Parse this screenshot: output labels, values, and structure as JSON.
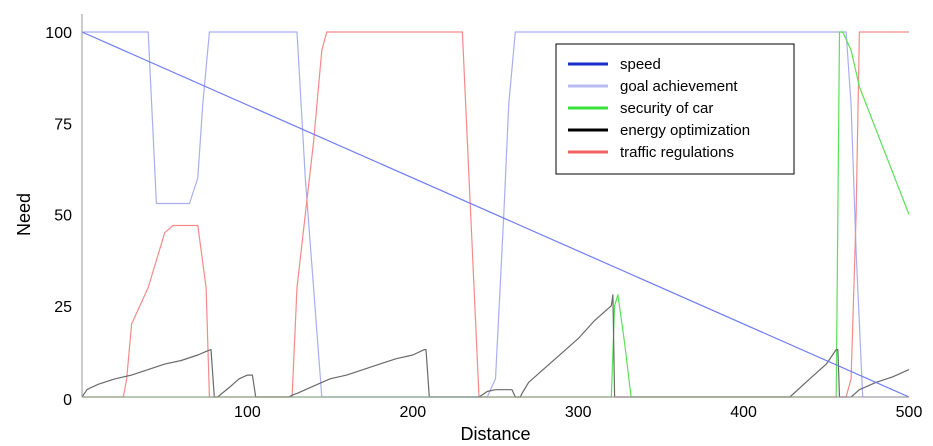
{
  "chart_data": {
    "type": "line",
    "xlabel": "Distance",
    "ylabel": "Need",
    "xlim": [
      0,
      500
    ],
    "ylim": [
      0,
      100
    ],
    "xticks": [
      100,
      200,
      300,
      400,
      500
    ],
    "yticks": [
      25,
      50,
      75,
      100
    ],
    "origin_label": "0",
    "grid": false,
    "legend_position": "top-right",
    "series": [
      {
        "name": "speed",
        "color": "#1a2ecc",
        "line_color": "#6f7df0",
        "x": [
          0,
          500
        ],
        "y": [
          100,
          0
        ]
      },
      {
        "name": "goal achievement",
        "color": "#b8bcf2",
        "line_color": "#a9aeee",
        "x": [
          0,
          22,
          40,
          45,
          60,
          65,
          70,
          73,
          77,
          80,
          85,
          130,
          135,
          145,
          150,
          220,
          236,
          240,
          245,
          250,
          255,
          258,
          262,
          265,
          462,
          465,
          468,
          472,
          500
        ],
        "y": [
          100,
          100,
          100,
          53,
          53,
          53,
          60,
          80,
          100,
          100,
          100,
          100,
          60,
          0,
          0,
          0,
          0,
          0,
          0,
          5,
          50,
          80,
          100,
          100,
          100,
          80,
          40,
          0,
          0
        ]
      },
      {
        "name": "security of car",
        "color": "#38e038",
        "line_color": "#5ae05a",
        "x": [
          0,
          320,
          322,
          324,
          328,
          332,
          456,
          458,
          460,
          465,
          470,
          500
        ],
        "y": [
          0,
          0,
          25,
          28,
          15,
          0,
          0,
          100,
          100,
          95,
          85,
          50
        ]
      },
      {
        "name": "energy optimization",
        "color": "#000000",
        "line_color": "#6a6a6a",
        "x": [
          0,
          3,
          5,
          10,
          20,
          30,
          40,
          50,
          60,
          70,
          75,
          78,
          80,
          82,
          90,
          95,
          100,
          103,
          105,
          110,
          120,
          125,
          127,
          130,
          140,
          150,
          160,
          170,
          180,
          190,
          200,
          207,
          208,
          210,
          230,
          240,
          245,
          250,
          260,
          262,
          265,
          266,
          270,
          280,
          290,
          300,
          310,
          320,
          321,
          322,
          325,
          330,
          340,
          400,
          420,
          428,
          440,
          450,
          456,
          457,
          458,
          460,
          465,
          470,
          480,
          490,
          500
        ],
        "y": [
          0,
          2,
          2.5,
          3.5,
          5,
          6,
          7.5,
          9,
          10,
          11.5,
          12.5,
          13,
          0,
          0,
          3,
          5,
          6,
          6,
          0,
          0,
          0,
          0,
          0.5,
          1,
          3,
          5,
          6,
          7.5,
          9,
          10.5,
          11.5,
          13,
          13,
          0,
          0,
          0,
          1.5,
          2,
          2,
          0,
          0,
          1,
          4,
          8,
          12,
          16,
          21,
          25,
          28,
          0,
          0,
          0,
          0,
          0,
          0,
          0,
          5,
          9,
          13,
          13,
          0,
          0,
          0,
          2,
          4,
          5.5,
          7.5
        ]
      },
      {
        "name": "traffic regulations",
        "color": "#f06060",
        "line_color": "#f48a8a",
        "x": [
          0,
          25,
          27,
          30,
          40,
          50,
          55,
          60,
          65,
          70,
          75,
          77,
          85,
          120,
          127,
          130,
          140,
          145,
          148,
          150,
          160,
          200,
          210,
          228,
          230,
          232,
          235,
          238,
          240,
          245,
          250,
          455,
          462,
          465,
          468,
          470,
          475,
          500
        ],
        "y": [
          0,
          0,
          5,
          20,
          30,
          45,
          47,
          47,
          47,
          47,
          30,
          0,
          0,
          0,
          0,
          30,
          70,
          95,
          100,
          100,
          100,
          100,
          100,
          100,
          100,
          80,
          50,
          20,
          0,
          0,
          0,
          0,
          0,
          5,
          50,
          100,
          100,
          100
        ]
      }
    ]
  }
}
